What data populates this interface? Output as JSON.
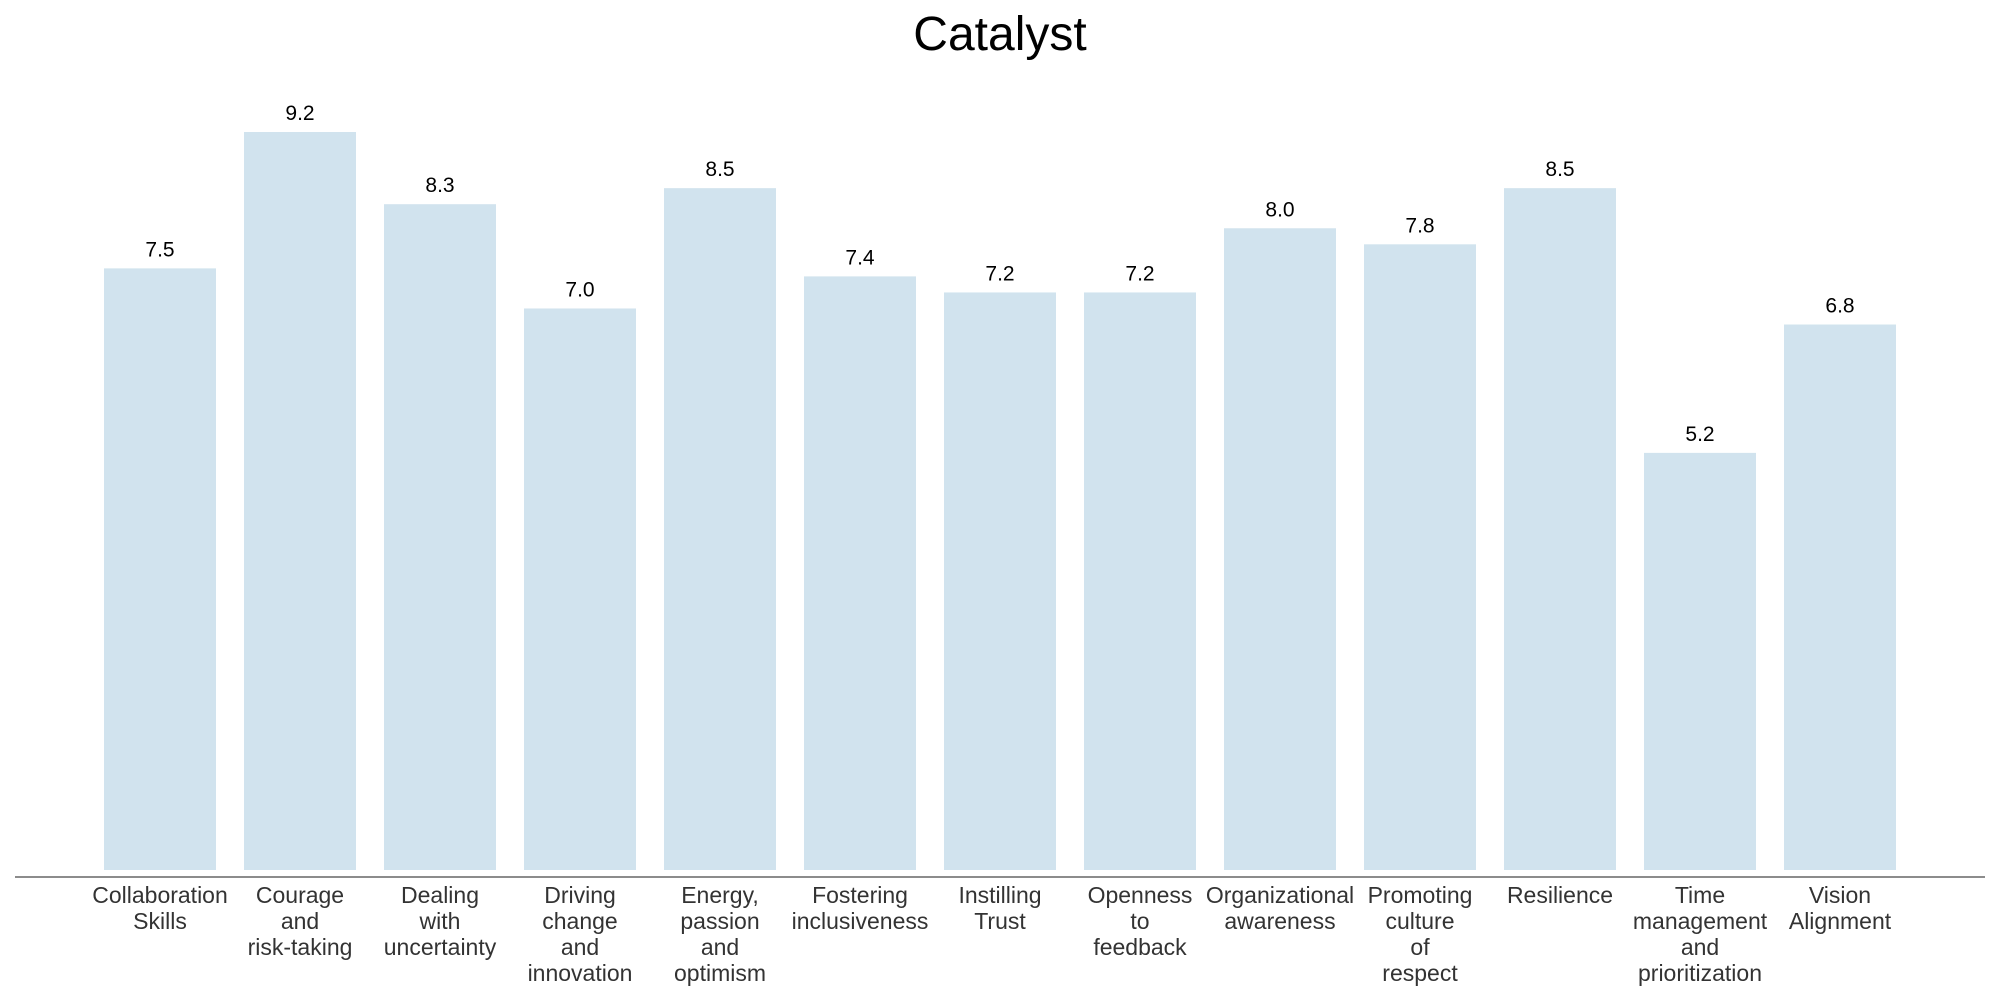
{
  "chart_data": {
    "type": "bar",
    "title": "Catalyst",
    "xlabel": "",
    "ylabel": "",
    "categories": [
      "Collaboration Skills",
      "Courage and risk-taking",
      "Dealing with uncertainty",
      "Driving change and innovation",
      "Energy, passion and optimism",
      "Fostering inclusiveness",
      "Instilling Trust",
      "Openness to feedback",
      "Organizational awareness",
      "Promoting culture of respect",
      "Resilience",
      "Time management and prioritization",
      "Vision Alignment"
    ],
    "tick_label_lines": [
      [
        "Collaboration",
        "Skills"
      ],
      [
        "Courage",
        "and",
        "risk-taking"
      ],
      [
        "Dealing",
        "with",
        "uncertainty"
      ],
      [
        "Driving",
        "change",
        "and",
        "innovation"
      ],
      [
        "Energy,",
        "passion",
        "and",
        "optimism"
      ],
      [
        "Fostering",
        "inclusiveness"
      ],
      [
        "Instilling",
        "Trust"
      ],
      [
        "Openness",
        "to",
        "feedback"
      ],
      [
        "Organizational",
        "awareness"
      ],
      [
        "Promoting",
        "culture",
        "of",
        "respect"
      ],
      [
        "Resilience"
      ],
      [
        "Time",
        "management",
        "and",
        "prioritization"
      ],
      [
        "Vision",
        "Alignment"
      ]
    ],
    "values": [
      7.5,
      9.2,
      8.3,
      7.0,
      8.5,
      7.4,
      7.2,
      7.2,
      8.0,
      7.8,
      8.5,
      5.2,
      6.8
    ],
    "value_labels": [
      "7.5",
      "9.2",
      "8.3",
      "7.0",
      "8.5",
      "7.4",
      "7.2",
      "7.2",
      "8.0",
      "7.8",
      "8.5",
      "5.2",
      "6.8"
    ],
    "ylim": [
      0,
      9.2
    ],
    "grid": false,
    "y_axis_visible": false,
    "bar_color": "#d1e3ee",
    "axis_color": "#666666"
  }
}
